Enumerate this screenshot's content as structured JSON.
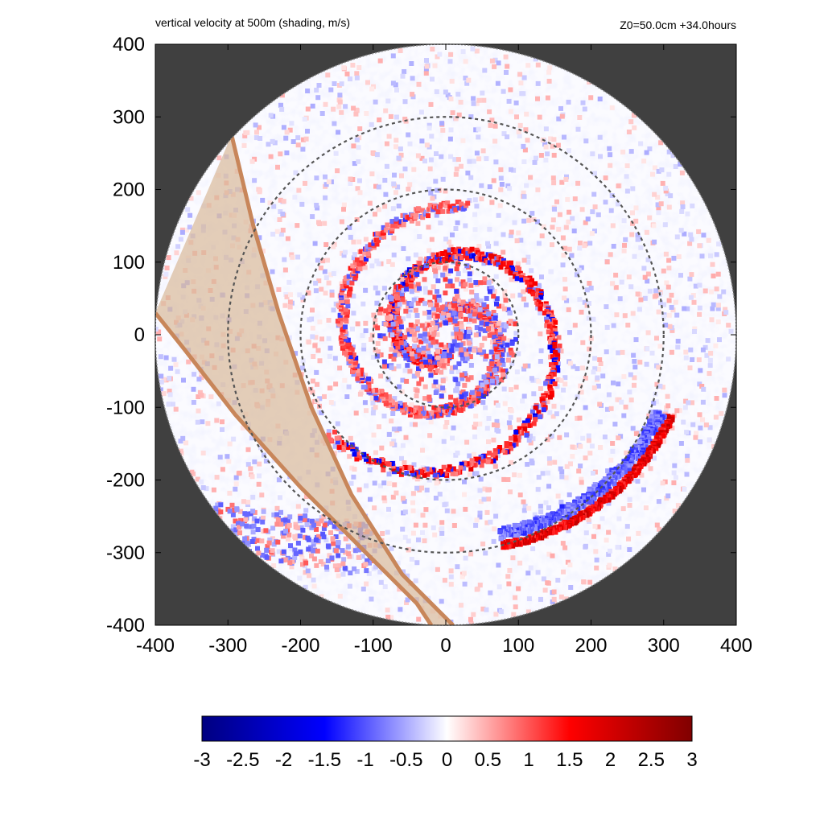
{
  "colors": {
    "background_outside_domain": "#404040",
    "band_fill": "#d9b99a",
    "band_edge": "#c8865a",
    "range_ring": "#555555",
    "colormap": [
      "#000080",
      "#0000ff",
      "#ffffff",
      "#ff0000",
      "#800000"
    ]
  },
  "chart_data": {
    "type": "heatmap",
    "title": "vertical velocity at 500m (shading, m/s)",
    "subtitle": "Z0=50.0cm  +34.0hours",
    "xlabel": "",
    "ylabel": "",
    "xlim": [
      -400,
      400
    ],
    "ylim": [
      -400,
      400
    ],
    "x_ticks": [
      "-400",
      "-300",
      "-200",
      "-100",
      "0",
      "100",
      "200",
      "300",
      "400"
    ],
    "y_ticks": [
      "400",
      "300",
      "200",
      "100",
      "0",
      "-100",
      "-200",
      "-300",
      "-400"
    ],
    "domain_radius": 400,
    "range_rings": [
      100,
      200,
      300
    ],
    "colorbar": {
      "range": [
        -3,
        3
      ],
      "tick_labels": [
        "-3",
        "-2.5",
        "-2",
        "-1.5",
        "-1",
        "-0.5",
        "0",
        "0.5",
        "1",
        "1.5",
        "2",
        "2.5",
        "3"
      ]
    },
    "shaded_band": {
      "edge_a": [
        [
          -295,
          275
        ],
        [
          -265,
          150
        ],
        [
          -230,
          30
        ],
        [
          -185,
          -100
        ],
        [
          -130,
          -220
        ],
        [
          -60,
          -330
        ],
        [
          10,
          -400
        ]
      ],
      "edge_b": [
        [
          -400,
          30
        ],
        [
          -360,
          -20
        ],
        [
          -290,
          -110
        ],
        [
          -200,
          -210
        ],
        [
          -110,
          -300
        ],
        [
          -40,
          -370
        ],
        [
          -20,
          -400
        ]
      ]
    },
    "features": {
      "spiral_bands": [
        {
          "start_angle_deg": 80,
          "end_angle_deg": 500,
          "r0": 25,
          "r1": 210,
          "amplitude": 1.8
        },
        {
          "start_angle_deg": 260,
          "end_angle_deg": 640,
          "r0": 30,
          "r1": 180,
          "amplitude": 1.4
        }
      ],
      "outer_arc": {
        "start_angle_deg": -20,
        "end_angle_deg": -75,
        "r0": 300,
        "r1": 330,
        "amplitude": 2.3
      },
      "inner_ring_amplitude": 1.2
    }
  }
}
